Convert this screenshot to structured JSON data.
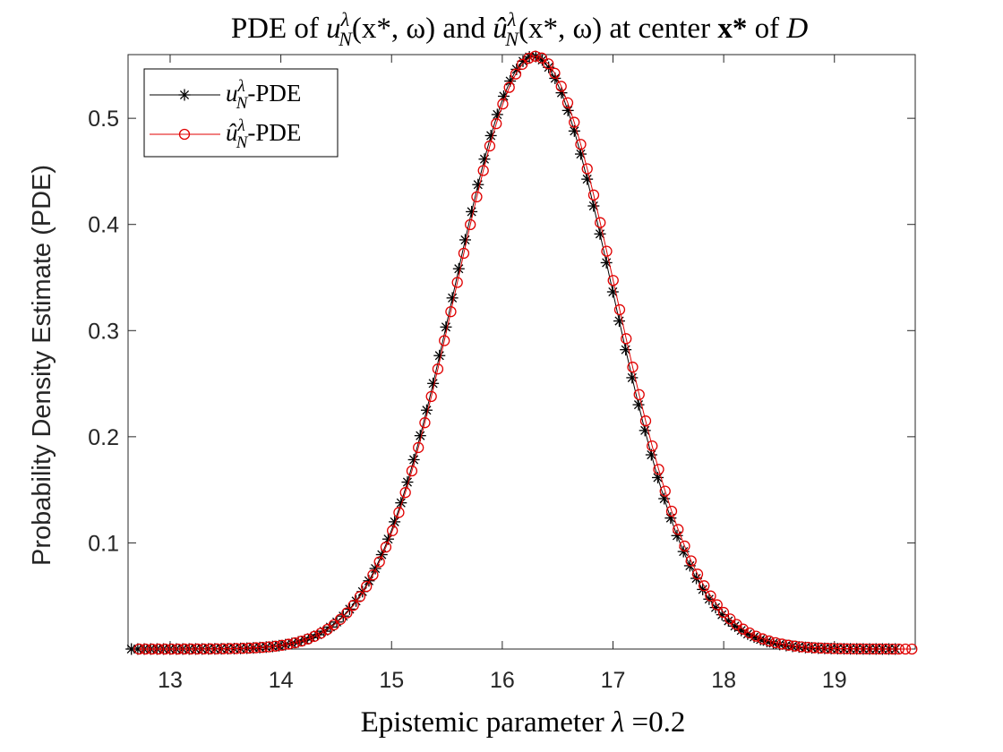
{
  "chart_data": {
    "type": "line",
    "title": {
      "prefix": "PDE of ",
      "u1_base": "u",
      "u1_sup": "λ",
      "u1_sub": "N",
      "u1_args": "(x*, ω)",
      "mid": " and ",
      "u2_base": "û",
      "u2_sup": "λ",
      "u2_sub": "N",
      "u2_args": "(x*, ω)",
      "suffix_a": " at center ",
      "x_star": "x*",
      "suffix_b": " of ",
      "domain": "D"
    },
    "xlabel": {
      "text": "Epistemic parameter ",
      "symbol": "λ",
      "value": " =0.2"
    },
    "ylabel": "Probability Density Estimate (PDE)",
    "xlim": [
      12.62,
      19.73
    ],
    "ylim": [
      0,
      0.56
    ],
    "xticks": [
      13,
      14,
      15,
      16,
      17,
      18,
      19
    ],
    "yticks": [
      0.1,
      0.2,
      0.3,
      0.4,
      0.5
    ],
    "ytick_labels": [
      "0.1",
      "0.2",
      "0.3",
      "0.4",
      "0.5"
    ],
    "legend_position": "top-left",
    "series": [
      {
        "name": "u-PDE",
        "legend_base": "u",
        "legend_sup": "λ",
        "legend_sub": "N",
        "legend_suffix": "-PDE",
        "color": "#000000",
        "marker": "asterisk",
        "mu": 16.28,
        "sigma": 0.714,
        "peak": 0.5585,
        "x_start": 12.65,
        "x_end": 19.55,
        "n_points": 120
      },
      {
        "name": "û-PDE",
        "legend_base": "û",
        "legend_sup": "λ",
        "legend_sub": "N",
        "legend_suffix": "-PDE",
        "color": "#e00000",
        "marker": "circle",
        "mu": 16.3,
        "sigma": 0.72,
        "peak": 0.5585,
        "x_start": 12.72,
        "x_end": 19.7,
        "n_points": 120
      }
    ]
  }
}
